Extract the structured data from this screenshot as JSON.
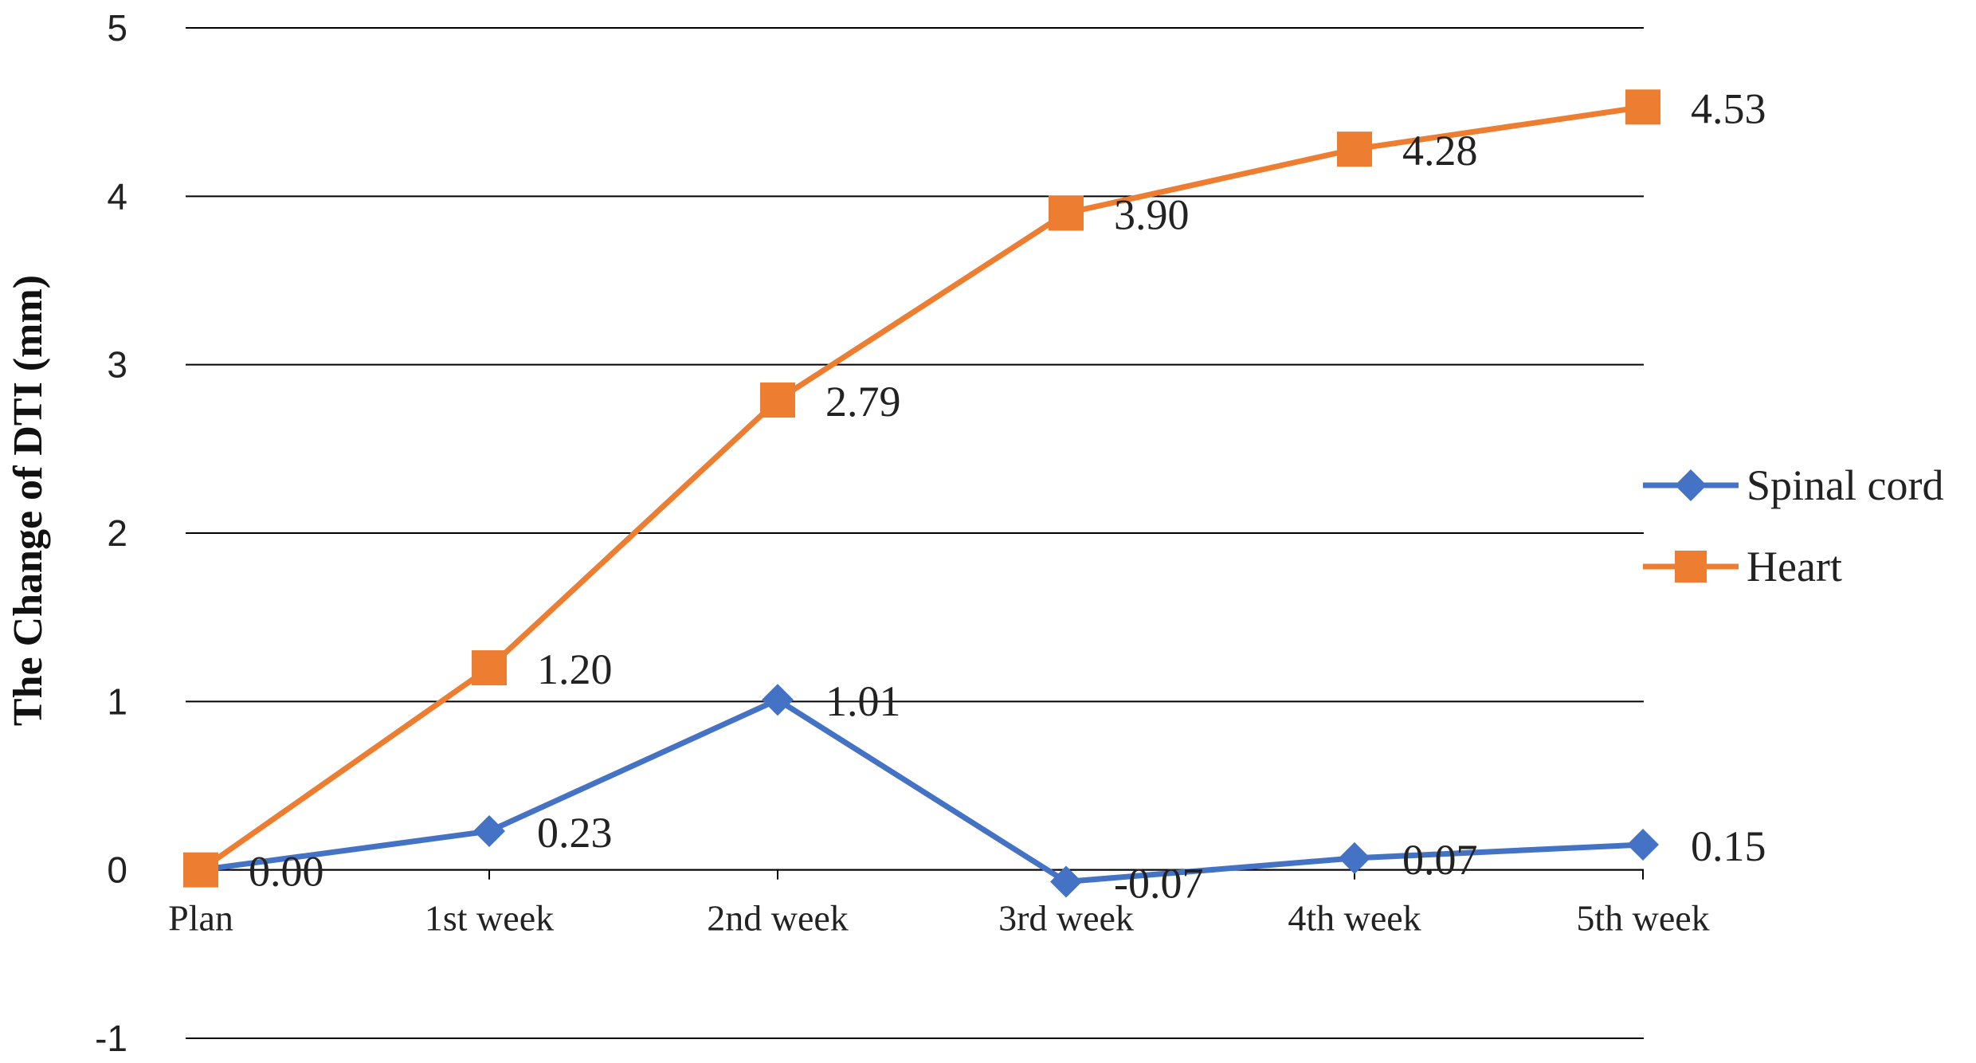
{
  "chart_data": {
    "type": "line",
    "title": "",
    "xlabel": "",
    "ylabel": "The Change of DTI (mm)",
    "categories": [
      "Plan",
      "1st week",
      "2nd week",
      "3rd week",
      "4th week",
      "5th week"
    ],
    "ylim": [
      -1,
      5
    ],
    "yticks": [
      -1,
      0,
      1,
      2,
      3,
      4,
      5
    ],
    "grid": true,
    "legend_position": "right",
    "series": [
      {
        "name": "Spinal cord",
        "color": "#4472C4",
        "marker": "diamond",
        "values": [
          0.0,
          0.23,
          1.01,
          -0.07,
          0.07,
          0.15
        ],
        "labels": [
          "0.00",
          "0.23",
          "1.01",
          "-0.07",
          "0.07",
          "0.15"
        ]
      },
      {
        "name": "Heart",
        "color": "#ED7D31",
        "marker": "square",
        "values": [
          0.0,
          1.2,
          2.79,
          3.9,
          4.28,
          4.53
        ],
        "labels": [
          "",
          "1.20",
          "2.79",
          "3.90",
          "4.28",
          "4.53"
        ]
      }
    ]
  }
}
